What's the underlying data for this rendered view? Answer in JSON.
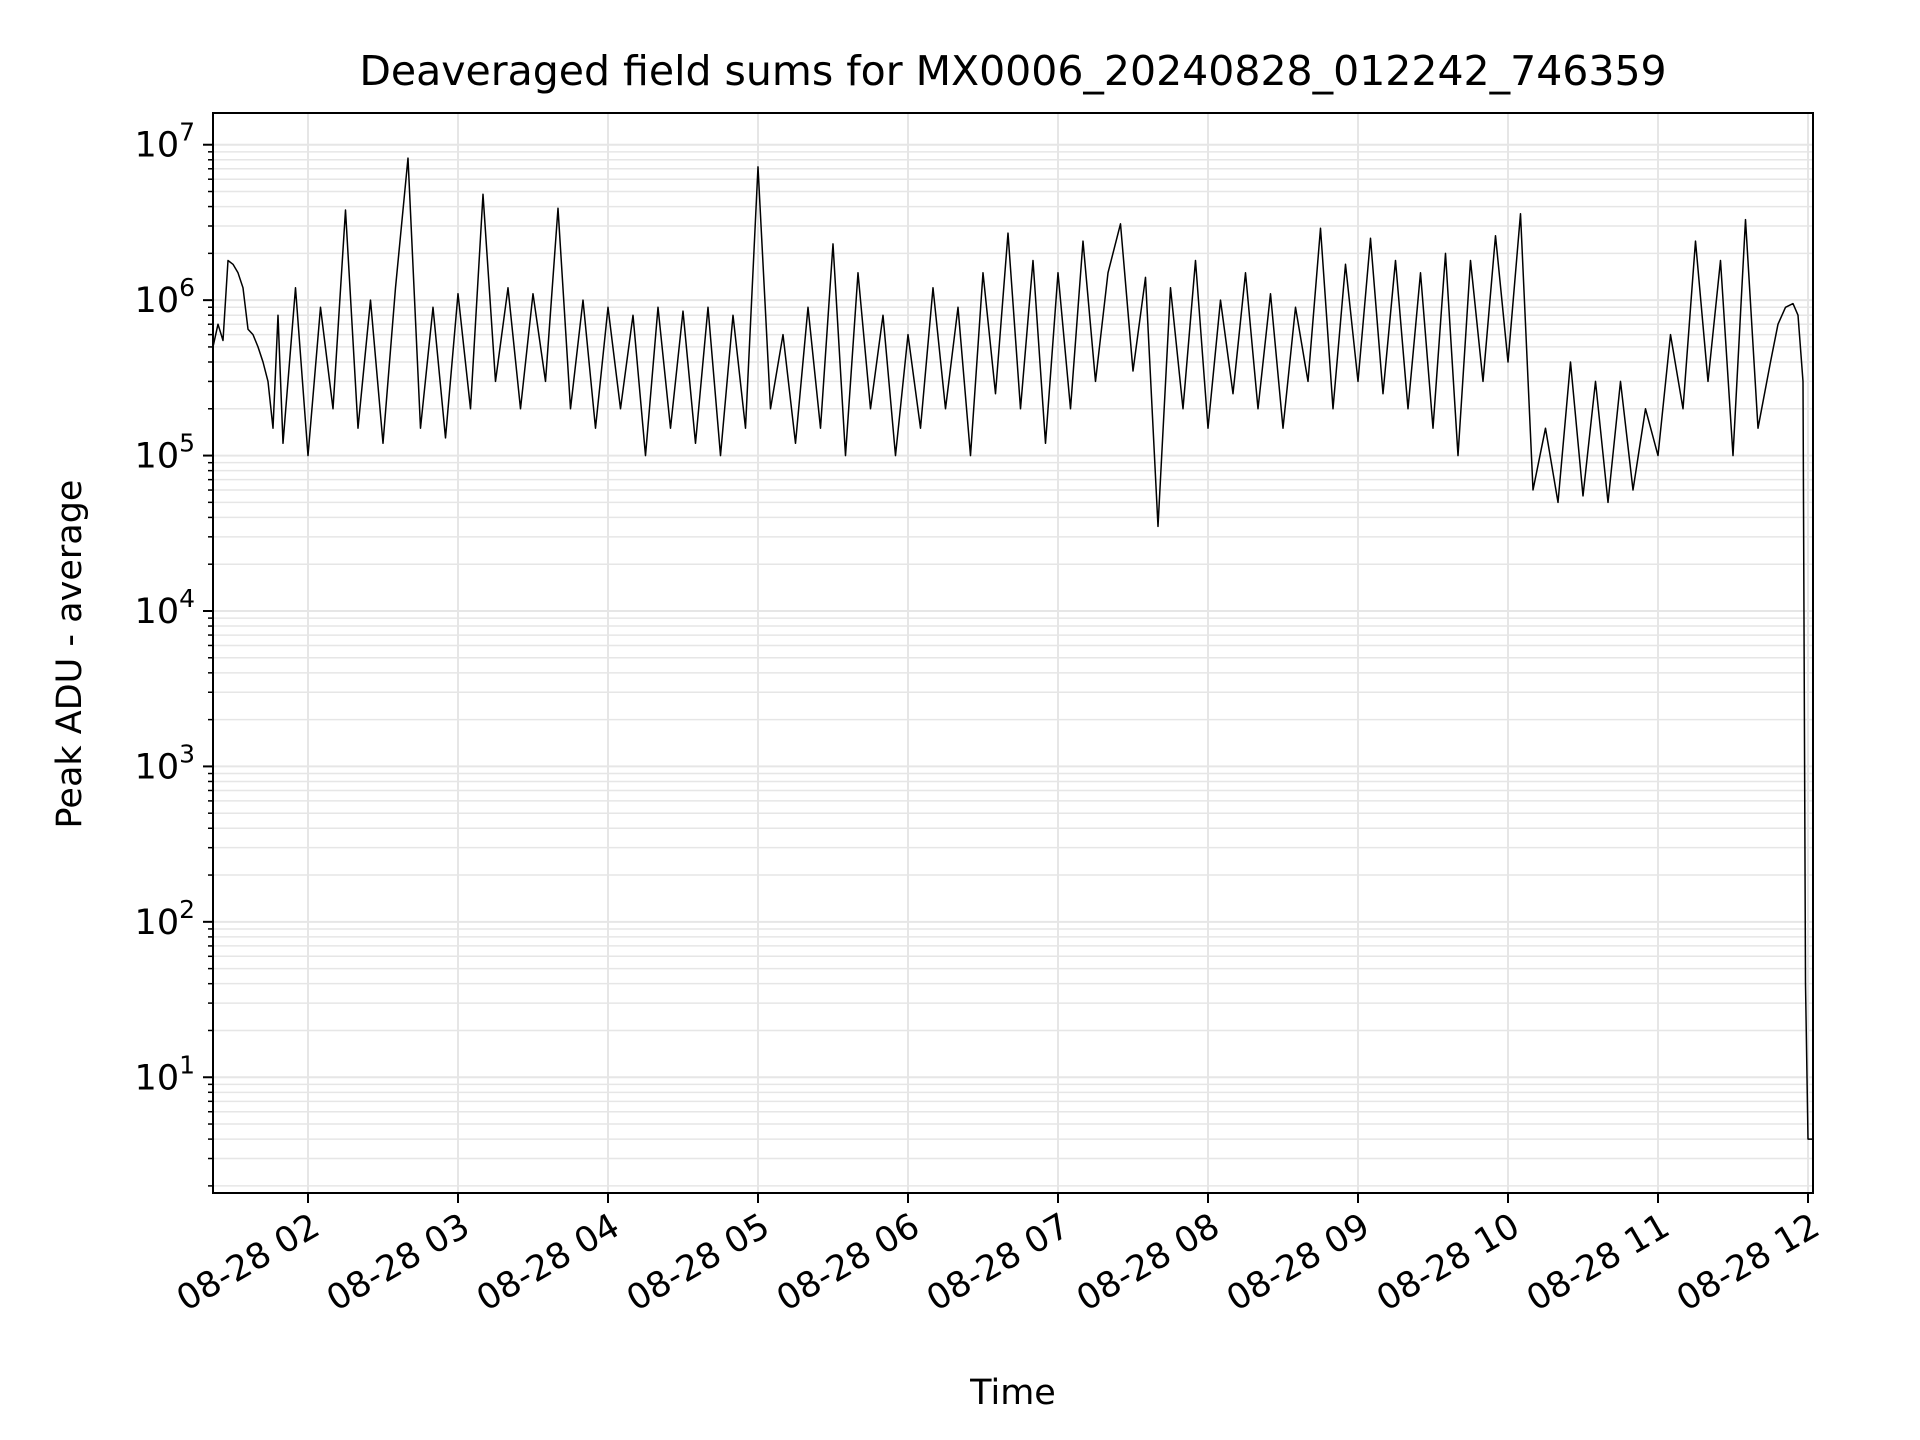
{
  "chart_data": {
    "type": "line",
    "title": "Deaveraged field sums for MX0006_20240828_012242_746359",
    "xlabel": "Time",
    "ylabel": "Peak ADU - average",
    "x_type": "time",
    "xlim": [
      "2024-08-28 01:22",
      "2024-08-28 12:02"
    ],
    "yscale": "log",
    "ylim": [
      1.8,
      16000000
    ],
    "grid": true,
    "grid_minor": true,
    "x_ticks": [
      {
        "value": "2024-08-28 02:00",
        "label": "08-28 02"
      },
      {
        "value": "2024-08-28 03:00",
        "label": "08-28 03"
      },
      {
        "value": "2024-08-28 04:00",
        "label": "08-28 04"
      },
      {
        "value": "2024-08-28 05:00",
        "label": "08-28 05"
      },
      {
        "value": "2024-08-28 06:00",
        "label": "08-28 06"
      },
      {
        "value": "2024-08-28 07:00",
        "label": "08-28 07"
      },
      {
        "value": "2024-08-28 08:00",
        "label": "08-28 08"
      },
      {
        "value": "2024-08-28 09:00",
        "label": "08-28 09"
      },
      {
        "value": "2024-08-28 10:00",
        "label": "08-28 10"
      },
      {
        "value": "2024-08-28 11:00",
        "label": "08-28 11"
      },
      {
        "value": "2024-08-28 12:00",
        "label": "08-28 12"
      }
    ],
    "y_ticks": [
      {
        "value": 10,
        "base": "10",
        "exp": "1"
      },
      {
        "value": 100,
        "base": "10",
        "exp": "2"
      },
      {
        "value": 1000,
        "base": "10",
        "exp": "3"
      },
      {
        "value": 10000,
        "base": "10",
        "exp": "4"
      },
      {
        "value": 100000,
        "base": "10",
        "exp": "5"
      },
      {
        "value": 1000000,
        "base": "10",
        "exp": "6"
      },
      {
        "value": 10000000,
        "base": "10",
        "exp": "7"
      }
    ],
    "line_color": "#000000",
    "grid_color": "#e6e6e6",
    "series": [
      {
        "x": [
          "2024-08-28 01:22",
          "2024-08-28 01:24",
          "2024-08-28 01:26",
          "2024-08-28 01:28",
          "2024-08-28 01:30",
          "2024-08-28 01:32",
          "2024-08-28 01:34",
          "2024-08-28 01:36",
          "2024-08-28 01:38",
          "2024-08-28 01:40",
          "2024-08-28 01:42",
          "2024-08-28 01:44",
          "2024-08-28 01:46",
          "2024-08-28 01:48",
          "2024-08-28 01:50",
          "2024-08-28 01:55",
          "2024-08-28 02:00",
          "2024-08-28 02:05",
          "2024-08-28 02:10",
          "2024-08-28 02:15",
          "2024-08-28 02:20",
          "2024-08-28 02:25",
          "2024-08-28 02:30",
          "2024-08-28 02:35",
          "2024-08-28 02:40",
          "2024-08-28 02:45",
          "2024-08-28 02:50",
          "2024-08-28 02:55",
          "2024-08-28 03:00",
          "2024-08-28 03:05",
          "2024-08-28 03:10",
          "2024-08-28 03:15",
          "2024-08-28 03:20",
          "2024-08-28 03:25",
          "2024-08-28 03:30",
          "2024-08-28 03:35",
          "2024-08-28 03:40",
          "2024-08-28 03:45",
          "2024-08-28 03:50",
          "2024-08-28 03:55",
          "2024-08-28 04:00",
          "2024-08-28 04:05",
          "2024-08-28 04:10",
          "2024-08-28 04:15",
          "2024-08-28 04:20",
          "2024-08-28 04:25",
          "2024-08-28 04:30",
          "2024-08-28 04:35",
          "2024-08-28 04:40",
          "2024-08-28 04:45",
          "2024-08-28 04:50",
          "2024-08-28 04:55",
          "2024-08-28 05:00",
          "2024-08-28 05:05",
          "2024-08-28 05:10",
          "2024-08-28 05:15",
          "2024-08-28 05:20",
          "2024-08-28 05:25",
          "2024-08-28 05:30",
          "2024-08-28 05:35",
          "2024-08-28 05:40",
          "2024-08-28 05:45",
          "2024-08-28 05:50",
          "2024-08-28 05:55",
          "2024-08-28 06:00",
          "2024-08-28 06:05",
          "2024-08-28 06:10",
          "2024-08-28 06:15",
          "2024-08-28 06:20",
          "2024-08-28 06:25",
          "2024-08-28 06:30",
          "2024-08-28 06:35",
          "2024-08-28 06:40",
          "2024-08-28 06:45",
          "2024-08-28 06:50",
          "2024-08-28 06:55",
          "2024-08-28 07:00",
          "2024-08-28 07:05",
          "2024-08-28 07:10",
          "2024-08-28 07:15",
          "2024-08-28 07:20",
          "2024-08-28 07:25",
          "2024-08-28 07:30",
          "2024-08-28 07:35",
          "2024-08-28 07:40",
          "2024-08-28 07:45",
          "2024-08-28 07:50",
          "2024-08-28 07:55",
          "2024-08-28 08:00",
          "2024-08-28 08:05",
          "2024-08-28 08:10",
          "2024-08-28 08:15",
          "2024-08-28 08:20",
          "2024-08-28 08:25",
          "2024-08-28 08:30",
          "2024-08-28 08:35",
          "2024-08-28 08:40",
          "2024-08-28 08:45",
          "2024-08-28 08:50",
          "2024-08-28 08:55",
          "2024-08-28 09:00",
          "2024-08-28 09:05",
          "2024-08-28 09:10",
          "2024-08-28 09:15",
          "2024-08-28 09:20",
          "2024-08-28 09:25",
          "2024-08-28 09:30",
          "2024-08-28 09:35",
          "2024-08-28 09:40",
          "2024-08-28 09:45",
          "2024-08-28 09:50",
          "2024-08-28 09:55",
          "2024-08-28 10:00",
          "2024-08-28 10:05",
          "2024-08-28 10:10",
          "2024-08-28 10:15",
          "2024-08-28 10:20",
          "2024-08-28 10:25",
          "2024-08-28 10:30",
          "2024-08-28 10:35",
          "2024-08-28 10:40",
          "2024-08-28 10:45",
          "2024-08-28 10:50",
          "2024-08-28 10:55",
          "2024-08-28 11:00",
          "2024-08-28 11:05",
          "2024-08-28 11:10",
          "2024-08-28 11:15",
          "2024-08-28 11:20",
          "2024-08-28 11:25",
          "2024-08-28 11:30",
          "2024-08-28 11:35",
          "2024-08-28 11:40",
          "2024-08-28 11:45",
          "2024-08-28 11:48",
          "2024-08-28 11:51",
          "2024-08-28 11:54",
          "2024-08-28 11:56",
          "2024-08-28 11:58",
          "2024-08-28 11:59",
          "2024-08-28 12:00",
          "2024-08-28 12:01",
          "2024-08-28 12:02"
        ],
        "y": [
          500000,
          700000,
          550000,
          1800000,
          1700000,
          1500000,
          1200000,
          650000,
          600000,
          500000,
          400000,
          300000,
          150000,
          800000,
          120000,
          1200000,
          100000,
          900000,
          200000,
          3800000,
          150000,
          1000000,
          120000,
          1200000,
          8200000,
          150000,
          900000,
          130000,
          1100000,
          200000,
          4800000,
          300000,
          1200000,
          200000,
          1100000,
          300000,
          3900000,
          200000,
          1000000,
          150000,
          900000,
          200000,
          800000,
          100000,
          900000,
          150000,
          850000,
          120000,
          900000,
          100000,
          800000,
          150000,
          7200000,
          200000,
          600000,
          120000,
          900000,
          150000,
          2300000,
          100000,
          1500000,
          200000,
          800000,
          100000,
          600000,
          150000,
          1200000,
          200000,
          900000,
          100000,
          1500000,
          250000,
          2700000,
          200000,
          1800000,
          120000,
          1500000,
          200000,
          2400000,
          300000,
          1500000,
          3100000,
          350000,
          1400000,
          35000,
          1200000,
          200000,
          1800000,
          150000,
          1000000,
          250000,
          1500000,
          200000,
          1100000,
          150000,
          900000,
          300000,
          2900000,
          200000,
          1700000,
          300000,
          2500000,
          250000,
          1800000,
          200000,
          1500000,
          150000,
          2000000,
          100000,
          1800000,
          300000,
          2600000,
          400000,
          3600000,
          60000,
          150000,
          50000,
          400000,
          55000,
          300000,
          50000,
          300000,
          60000,
          200000,
          100000,
          600000,
          200000,
          2400000,
          300000,
          1800000,
          100000,
          3300000,
          150000,
          400000,
          700000,
          900000,
          950000,
          800000,
          300000,
          40,
          4,
          4,
          4
        ]
      }
    ]
  }
}
